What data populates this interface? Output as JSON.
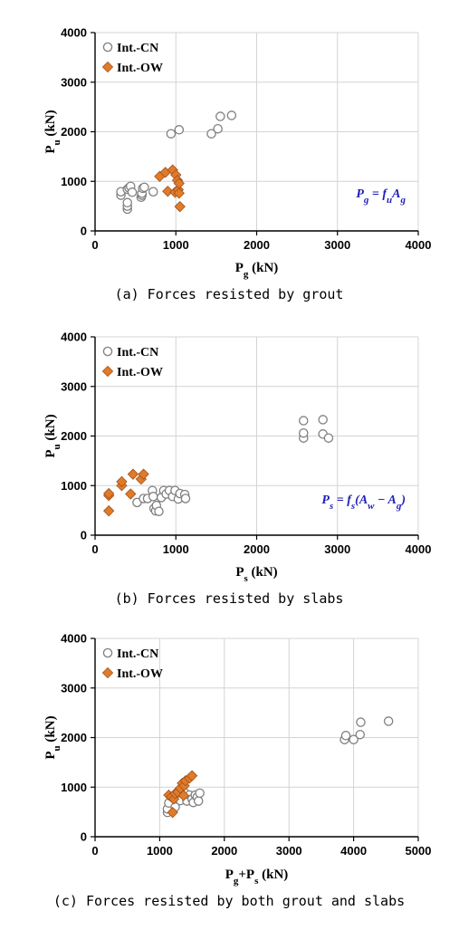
{
  "chart_data": [
    {
      "type": "scatter",
      "xlabel": "Pg (kN)",
      "xlabel_main": "P",
      "xlabel_sub": "g",
      "xlabel_tail": " (kN)",
      "ylabel_main": "P",
      "ylabel_sub": "u",
      "ylabel_tail": " (kN)",
      "xlim": [
        0,
        4000
      ],
      "ylim": [
        0,
        4000
      ],
      "xticks": [
        0,
        1000,
        2000,
        3000,
        4000
      ],
      "yticks": [
        0,
        1000,
        2000,
        3000,
        4000
      ],
      "grid": true,
      "legend_position": "top-left",
      "annotation": "Pg = fuAg",
      "caption": "(a) Forces resisted by grout",
      "series": [
        {
          "name": "Int.-CN",
          "marker": "circle-open",
          "color": "#7f7f7f",
          "points": [
            [
              320,
              720
            ],
            [
              320,
              790
            ],
            [
              400,
              440
            ],
            [
              400,
              500
            ],
            [
              400,
              570
            ],
            [
              400,
              840
            ],
            [
              420,
              870
            ],
            [
              440,
              900
            ],
            [
              460,
              780
            ],
            [
              570,
              680
            ],
            [
              580,
              720
            ],
            [
              580,
              760
            ],
            [
              590,
              860
            ],
            [
              610,
              880
            ],
            [
              720,
              790
            ],
            [
              940,
              1960
            ],
            [
              1040,
              2040
            ],
            [
              1440,
              1960
            ],
            [
              1520,
              2060
            ],
            [
              1550,
              2310
            ],
            [
              1690,
              2330
            ]
          ]
        },
        {
          "name": "Int.-OW",
          "marker": "diamond",
          "color": "#e07b2a",
          "points": [
            [
              800,
              1100
            ],
            [
              870,
              1180
            ],
            [
              900,
              800
            ],
            [
              960,
              1230
            ],
            [
              990,
              780
            ],
            [
              1000,
              1130
            ],
            [
              1020,
              1020
            ],
            [
              1030,
              830
            ],
            [
              1040,
              960
            ],
            [
              1040,
              760
            ],
            [
              1050,
              490
            ]
          ]
        }
      ]
    },
    {
      "type": "scatter",
      "xlabel": "Ps (kN)",
      "xlabel_main": "P",
      "xlabel_sub": "s",
      "xlabel_tail": " (kN)",
      "ylabel_main": "P",
      "ylabel_sub": "u",
      "ylabel_tail": " (kN)",
      "xlim": [
        0,
        4000
      ],
      "ylim": [
        0,
        4000
      ],
      "xticks": [
        0,
        1000,
        2000,
        3000,
        4000
      ],
      "yticks": [
        0,
        1000,
        2000,
        3000,
        4000
      ],
      "grid": true,
      "legend_position": "top-left",
      "annotation": "Ps = fs(Aw − Ag)",
      "caption": "(b) Forces resisted by slabs",
      "series": [
        {
          "name": "Int.-CN",
          "marker": "circle-open",
          "color": "#7f7f7f",
          "points": [
            [
              520,
              660
            ],
            [
              600,
              740
            ],
            [
              650,
              740
            ],
            [
              710,
              900
            ],
            [
              720,
              780
            ],
            [
              730,
              540
            ],
            [
              750,
              490
            ],
            [
              760,
              600
            ],
            [
              790,
              480
            ],
            [
              820,
              760
            ],
            [
              850,
              900
            ],
            [
              880,
              830
            ],
            [
              920,
              900
            ],
            [
              960,
              780
            ],
            [
              990,
              900
            ],
            [
              1030,
              730
            ],
            [
              1050,
              840
            ],
            [
              1110,
              820
            ],
            [
              1120,
              740
            ],
            [
              2580,
              1960
            ],
            [
              2580,
              2060
            ],
            [
              2580,
              2310
            ],
            [
              2820,
              2040
            ],
            [
              2820,
              2330
            ],
            [
              2890,
              1960
            ]
          ]
        },
        {
          "name": "Int.-OW",
          "marker": "diamond",
          "color": "#e07b2a",
          "points": [
            [
              170,
              490
            ],
            [
              170,
              800
            ],
            [
              170,
              840
            ],
            [
              330,
              1000
            ],
            [
              330,
              1080
            ],
            [
              440,
              830
            ],
            [
              470,
              1230
            ],
            [
              570,
              1130
            ],
            [
              600,
              1230
            ]
          ]
        }
      ]
    },
    {
      "type": "scatter",
      "xlabel": "Pg+Ps (kN)",
      "xlabel_main": "P",
      "xlabel_sub": "g",
      "xlabel_mid": "+P",
      "xlabel_sub2": "s",
      "xlabel_tail": " (kN)",
      "ylabel_main": "P",
      "ylabel_sub": "u",
      "ylabel_tail": " (kN)",
      "xlim": [
        0,
        5000
      ],
      "ylim": [
        0,
        4000
      ],
      "xticks": [
        0,
        1000,
        2000,
        3000,
        4000,
        5000
      ],
      "yticks": [
        0,
        1000,
        2000,
        3000,
        4000
      ],
      "grid": true,
      "legend_position": "top-left",
      "annotation": "",
      "caption": "(c) Forces resisted by both grout and slabs",
      "series": [
        {
          "name": "Int.-CN",
          "marker": "circle-open",
          "color": "#7f7f7f",
          "points": [
            [
              1120,
              490
            ],
            [
              1120,
              560
            ],
            [
              1140,
              680
            ],
            [
              1200,
              800
            ],
            [
              1240,
              600
            ],
            [
              1270,
              880
            ],
            [
              1320,
              730
            ],
            [
              1360,
              860
            ],
            [
              1380,
              900
            ],
            [
              1420,
              720
            ],
            [
              1460,
              840
            ],
            [
              1500,
              760
            ],
            [
              1520,
              690
            ],
            [
              1550,
              840
            ],
            [
              1580,
              800
            ],
            [
              1600,
              720
            ],
            [
              1620,
              880
            ],
            [
              3860,
              1960
            ],
            [
              3880,
              2040
            ],
            [
              4000,
              1960
            ],
            [
              4100,
              2060
            ],
            [
              4110,
              2310
            ],
            [
              4540,
              2330
            ]
          ]
        },
        {
          "name": "Int.-OW",
          "marker": "diamond",
          "color": "#e07b2a",
          "points": [
            [
              1140,
              840
            ],
            [
              1180,
              800
            ],
            [
              1200,
              490
            ],
            [
              1220,
              760
            ],
            [
              1240,
              870
            ],
            [
              1280,
              900
            ],
            [
              1320,
              980
            ],
            [
              1350,
              1080
            ],
            [
              1380,
              1030
            ],
            [
              1400,
              1130
            ],
            [
              1460,
              1180
            ],
            [
              1500,
              1230
            ],
            [
              1370,
              830
            ]
          ]
        }
      ]
    }
  ]
}
